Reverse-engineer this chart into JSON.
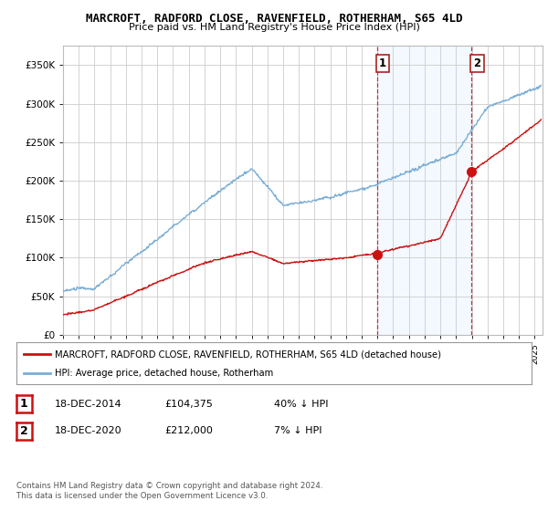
{
  "title": "MARCROFT, RADFORD CLOSE, RAVENFIELD, ROTHERHAM, S65 4LD",
  "subtitle": "Price paid vs. HM Land Registry's House Price Index (HPI)",
  "ylim": [
    0,
    375000
  ],
  "xlim_start": 1995,
  "xlim_end": 2025.5,
  "hpi_color": "#7aaed6",
  "price_color": "#cc1111",
  "sale1_date": "18-DEC-2014",
  "sale1_price": 104375,
  "sale1_hpi_pct": "40% ↓ HPI",
  "sale2_date": "18-DEC-2020",
  "sale2_price": 212000,
  "sale2_hpi_pct": "7% ↓ HPI",
  "sale1_x": 2014.96,
  "sale2_x": 2020.96,
  "legend_label1": "MARCROFT, RADFORD CLOSE, RAVENFIELD, ROTHERHAM, S65 4LD (detached house)",
  "legend_label2": "HPI: Average price, detached house, Rotherham",
  "footer": "Contains HM Land Registry data © Crown copyright and database right 2024.\nThis data is licensed under the Open Government Licence v3.0.",
  "background_color": "#ffffff",
  "grid_color": "#cccccc",
  "highlight_bg_color": "#ddeeff",
  "highlight_alpha": 0.35
}
